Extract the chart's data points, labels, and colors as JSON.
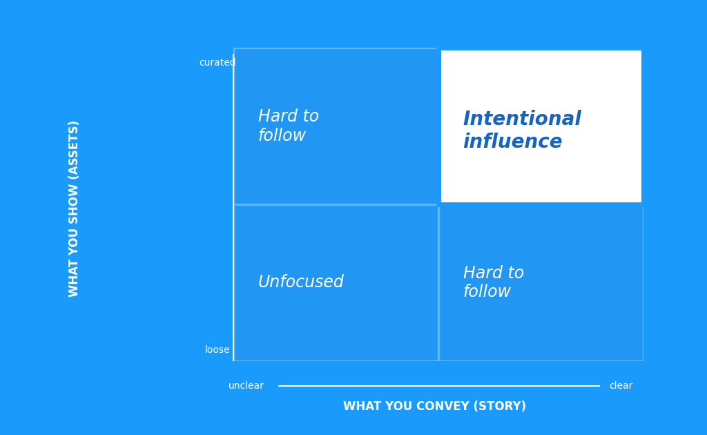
{
  "bg_color": "#1a9bfc",
  "quadrant_bg_color": "#2196F3",
  "grid_color": "#5ab8ff",
  "highlight_bg": "#ffffff",
  "highlight_border": "#1a9bfc",
  "text_white": "#ffffff",
  "text_blue_dark": "#1565C0",
  "title_xlabel": "WHAT YOU CONVEY (STORY)",
  "title_ylabel": "WHAT YOU SHOW (ASSETS)",
  "x_left_label": "unclear",
  "x_right_label": "clear",
  "y_bottom_label": "loose",
  "y_top_label": "curated",
  "quad_tl_text": "Hard to\nfollow",
  "quad_tr_text": "Intentional\ninfluence",
  "quad_bl_text": "Unfocused",
  "quad_br_text": "Hard to\nfollow",
  "figsize": [
    10.24,
    6.3
  ],
  "dpi": 100
}
